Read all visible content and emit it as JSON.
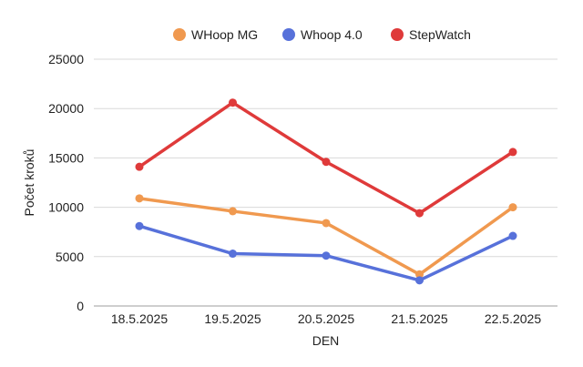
{
  "chart_data": {
    "type": "line",
    "categories": [
      "18.5.2025",
      "19.5.2025",
      "20.5.2025",
      "21.5.2025",
      "22.5.2025"
    ],
    "series": [
      {
        "name": "WHoop MG",
        "color": "#F0994F",
        "values": [
          10900,
          9600,
          8400,
          3200,
          10000
        ]
      },
      {
        "name": "Whoop 4.0",
        "color": "#5771DA",
        "values": [
          8100,
          5300,
          5100,
          2600,
          7100
        ]
      },
      {
        "name": "StepWatch",
        "color": "#DF3A3A",
        "values": [
          14100,
          20600,
          14600,
          9400,
          15600
        ]
      }
    ],
    "xlabel": "DEN",
    "ylabel": "Počet kroků",
    "ylim": [
      0,
      25000
    ],
    "yticks": [
      0,
      5000,
      10000,
      15000,
      20000,
      25000
    ],
    "grid": true,
    "legend_position": "top"
  }
}
